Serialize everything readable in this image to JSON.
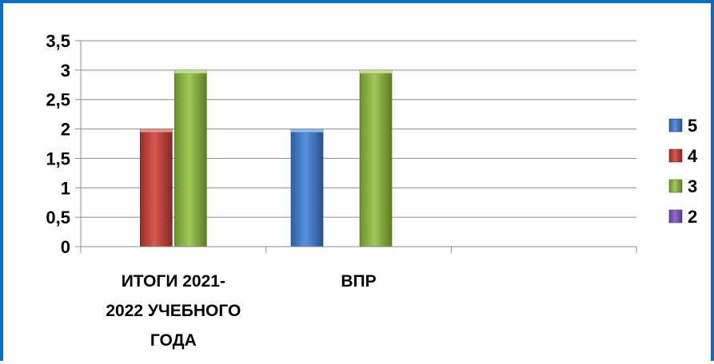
{
  "chart_data": {
    "type": "bar",
    "categories": [
      "ИТОГИ 2021-2022 УЧЕБНОГО ГОДА",
      "ВПР",
      ""
    ],
    "category_label_lines": [
      [
        "ИТОГИ 2021-",
        "2022 УЧЕБНОГО",
        "ГОДА"
      ],
      [
        "ВПР"
      ],
      []
    ],
    "series": [
      {
        "name": "5",
        "values": [
          null,
          2,
          null
        ],
        "color": "#3b7dd8"
      },
      {
        "name": "4",
        "values": [
          2,
          null,
          null
        ],
        "color": "#d03a34"
      },
      {
        "name": "3",
        "values": [
          3,
          3,
          null
        ],
        "color": "#8fc03a"
      },
      {
        "name": "2",
        "values": [
          null,
          null,
          null
        ],
        "color": "#7e57c2"
      }
    ],
    "ylim": [
      0,
      3.5
    ],
    "yticks": [
      0,
      0.5,
      1,
      1.5,
      2,
      2.5,
      3,
      3.5
    ],
    "ytick_labels": [
      "0",
      "0,5",
      "1",
      "1,5",
      "2",
      "2,5",
      "3",
      "3,5"
    ],
    "grid": true,
    "legend_position": "right",
    "title": "",
    "xlabel": "",
    "ylabel": ""
  }
}
